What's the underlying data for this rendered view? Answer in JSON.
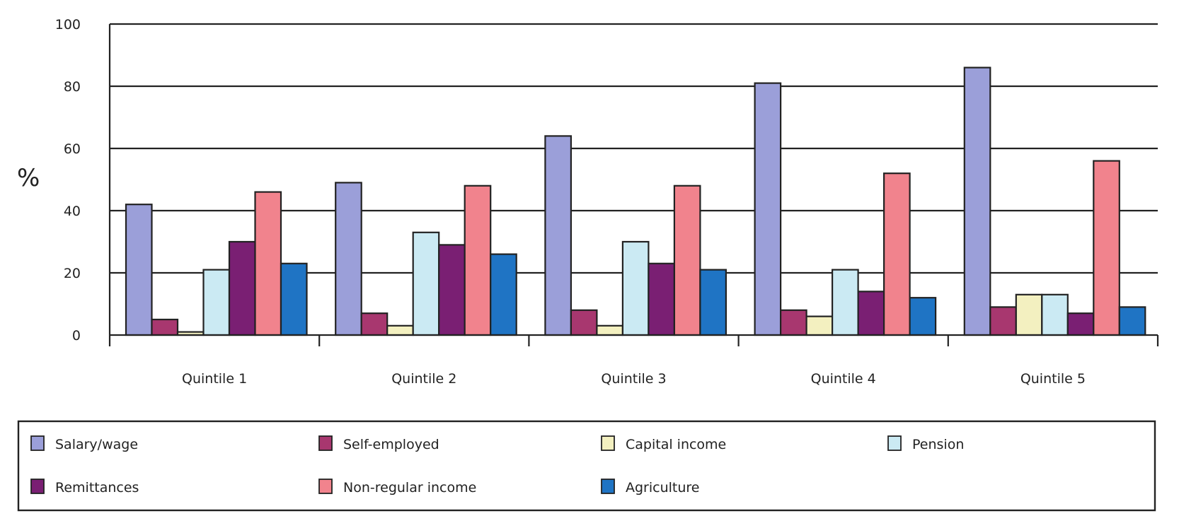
{
  "chart_data": {
    "type": "bar",
    "title": "",
    "xlabel": "",
    "ylabel": "%",
    "ylim": [
      0,
      100
    ],
    "yticks": [
      0,
      20,
      40,
      60,
      80,
      100
    ],
    "grid": true,
    "legend_position": "bottom",
    "categories": [
      "Quintile 1",
      "Quintile 2",
      "Quintile 3",
      "Quintile 4",
      "Quintile 5"
    ],
    "series": [
      {
        "name": "Salary/wage",
        "color": "#9b9fd9",
        "values": [
          42,
          49,
          64,
          81,
          86
        ]
      },
      {
        "name": "Self-employed",
        "color": "#a8376f",
        "values": [
          5,
          7,
          8,
          8,
          9
        ]
      },
      {
        "name": "Capital income",
        "color": "#f3f0c0",
        "values": [
          1,
          3,
          3,
          6,
          13
        ]
      },
      {
        "name": "Pension",
        "color": "#cbeaf3",
        "values": [
          21,
          33,
          30,
          21,
          13
        ]
      },
      {
        "name": "Remittances",
        "color": "#7a1f73",
        "values": [
          30,
          29,
          23,
          14,
          7
        ]
      },
      {
        "name": "Non-regular income",
        "color": "#f1838d",
        "values": [
          46,
          48,
          48,
          52,
          56
        ]
      },
      {
        "name": "Agriculture",
        "color": "#1f74c4",
        "values": [
          23,
          26,
          21,
          12,
          9
        ]
      }
    ]
  }
}
